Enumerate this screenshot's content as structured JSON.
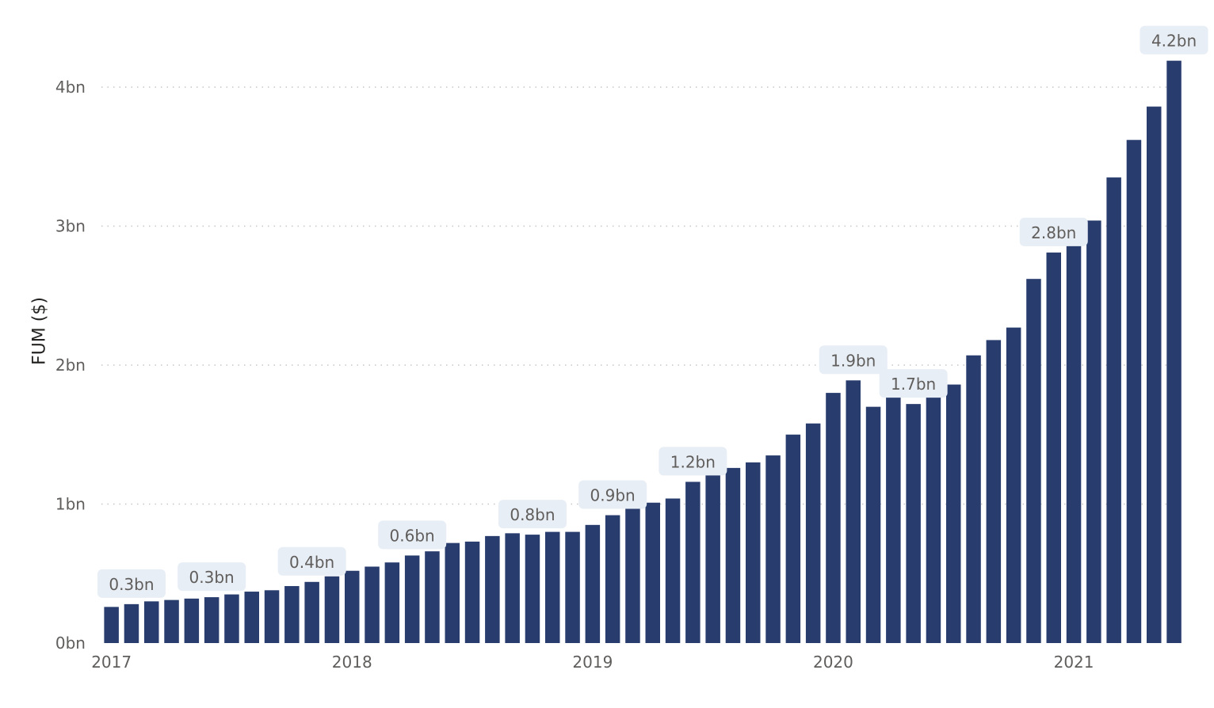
{
  "chart_data": {
    "type": "bar",
    "title": "",
    "xlabel": "",
    "ylabel": "FUM ($)",
    "ylim": [
      0,
      4.2
    ],
    "y_ticks": [
      {
        "value": 0,
        "label": "0bn"
      },
      {
        "value": 1,
        "label": "1bn"
      },
      {
        "value": 2,
        "label": "2bn"
      },
      {
        "value": 3,
        "label": "3bn"
      },
      {
        "value": 4,
        "label": "4bn"
      }
    ],
    "x_ticks": [
      {
        "index": 0,
        "label": "2017"
      },
      {
        "index": 12,
        "label": "2018"
      },
      {
        "index": 24,
        "label": "2019"
      },
      {
        "index": 36,
        "label": "2020"
      },
      {
        "index": 48,
        "label": "2021"
      }
    ],
    "grid": true,
    "bar_color": "#283c6e",
    "label_bg_color": "#e8eef5",
    "values": [
      0.26,
      0.28,
      0.3,
      0.31,
      0.32,
      0.33,
      0.35,
      0.37,
      0.38,
      0.41,
      0.44,
      0.48,
      0.52,
      0.55,
      0.58,
      0.63,
      0.66,
      0.72,
      0.73,
      0.77,
      0.79,
      0.78,
      0.8,
      0.8,
      0.85,
      0.92,
      0.97,
      1.01,
      1.04,
      1.16,
      1.23,
      1.26,
      1.3,
      1.35,
      1.5,
      1.58,
      1.8,
      1.89,
      1.7,
      1.8,
      1.72,
      1.79,
      1.86,
      2.07,
      2.18,
      2.27,
      2.62,
      2.81,
      2.95,
      3.04,
      3.35,
      3.62,
      3.86,
      4.19
    ],
    "data_labels": [
      {
        "index": 1,
        "label": "0.3bn"
      },
      {
        "index": 5,
        "label": "0.3bn"
      },
      {
        "index": 10,
        "label": "0.4bn"
      },
      {
        "index": 15,
        "label": "0.6bn"
      },
      {
        "index": 21,
        "label": "0.8bn"
      },
      {
        "index": 25,
        "label": "0.9bn"
      },
      {
        "index": 29,
        "label": "1.2bn"
      },
      {
        "index": 37,
        "label": "1.9bn"
      },
      {
        "index": 40,
        "label": "1.7bn"
      },
      {
        "index": 47,
        "label": "2.8bn"
      },
      {
        "index": 53,
        "label": "4.2bn"
      }
    ]
  }
}
